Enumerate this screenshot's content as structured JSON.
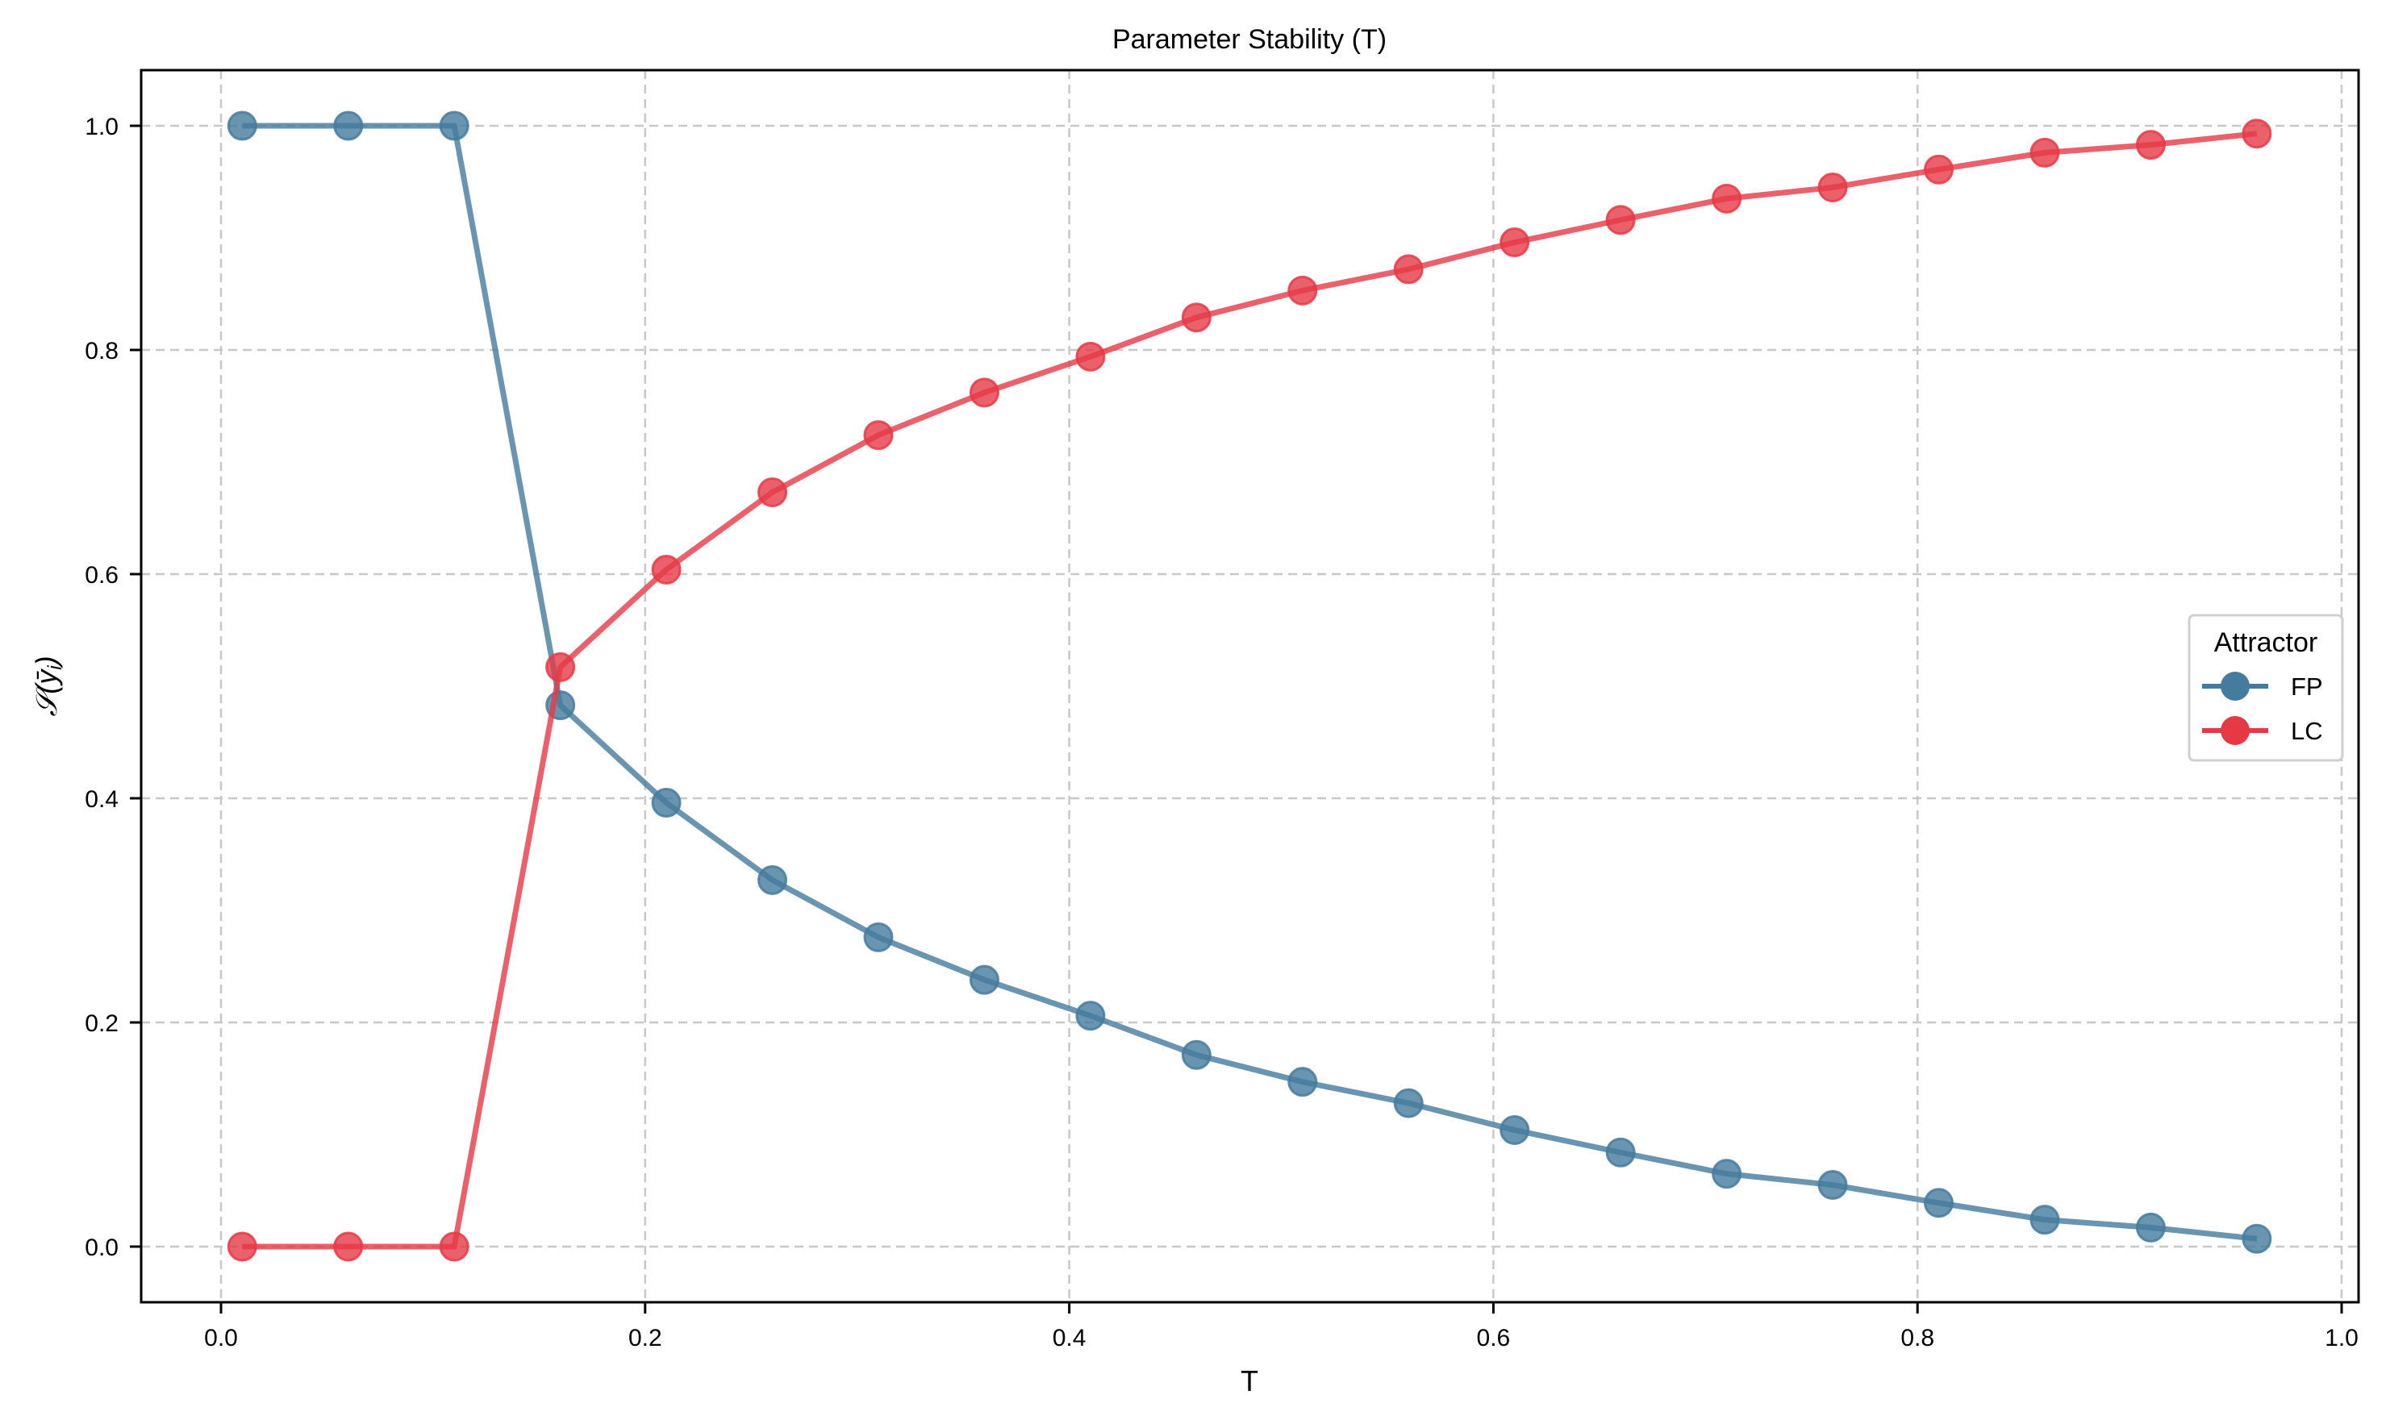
{
  "chart_data": {
    "type": "line",
    "title": "Parameter Stability (T)",
    "xlabel": "T",
    "ylabel": "S(ȳ_i)",
    "ylabel_display": "𝒮(ȳ",
    "ylabel_sub": "i",
    "xlim": [
      -0.038,
      1.016
    ],
    "ylim": [
      -0.05,
      1.05
    ],
    "xticks": [
      0.0,
      0.2,
      0.4,
      0.6,
      0.8,
      1.0
    ],
    "xtick_labels": [
      "0.0",
      "0.2",
      "0.4",
      "0.6",
      "0.8",
      "1.0"
    ],
    "yticks": [
      0.0,
      0.2,
      0.4,
      0.6,
      0.8,
      1.0
    ],
    "ytick_labels": [
      "0.0",
      "0.2",
      "0.4",
      "0.6",
      "0.8",
      "1.0"
    ],
    "grid": true,
    "grid_style": "dashed",
    "legend": {
      "title": "Attractor",
      "position": "center right",
      "entries": [
        "FP",
        "LC"
      ]
    },
    "x": [
      0.01,
      0.06,
      0.11,
      0.16,
      0.21,
      0.26,
      0.31,
      0.36,
      0.41,
      0.46,
      0.51,
      0.56,
      0.61,
      0.66,
      0.71,
      0.76,
      0.81,
      0.86,
      0.91,
      0.96
    ],
    "series": [
      {
        "name": "FP",
        "color": "#457b9d",
        "values": [
          1.0,
          1.0,
          1.0,
          0.483,
          0.396,
          0.327,
          0.276,
          0.238,
          0.206,
          0.171,
          0.147,
          0.128,
          0.104,
          0.084,
          0.065,
          0.055,
          0.039,
          0.024,
          0.017,
          0.007
        ]
      },
      {
        "name": "LC",
        "color": "#e63946",
        "values": [
          0.0,
          0.0,
          0.0,
          0.517,
          0.604,
          0.673,
          0.724,
          0.762,
          0.794,
          0.829,
          0.853,
          0.872,
          0.896,
          0.916,
          0.935,
          0.945,
          0.961,
          0.976,
          0.983,
          0.993
        ]
      }
    ]
  }
}
